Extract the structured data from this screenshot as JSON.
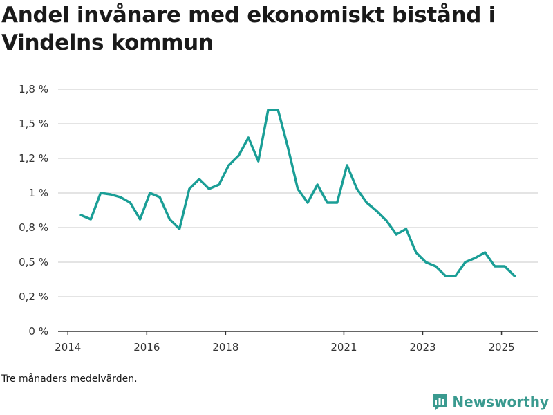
{
  "title": "Andel invånare med ekonomiskt bistånd i Vindelns kommun",
  "note": "Tre månaders medelvärden.",
  "brand": {
    "name": "Newsworthy",
    "color": "#3a9a8f"
  },
  "chart_data": {
    "type": "line",
    "color": "#1a9e96",
    "grid": true,
    "ylim": [
      0,
      1.75
    ],
    "yticks": [
      {
        "value": 0,
        "label": "0 %"
      },
      {
        "value": 0.25,
        "label": "0,2 %"
      },
      {
        "value": 0.5,
        "label": "0,5 %"
      },
      {
        "value": 0.75,
        "label": "0,8 %"
      },
      {
        "value": 1.0,
        "label": "1 %"
      },
      {
        "value": 1.25,
        "label": "1,2 %"
      },
      {
        "value": 1.5,
        "label": "1,5 %"
      },
      {
        "value": 1.75,
        "label": "1,8 %"
      }
    ],
    "xlim": [
      2013.75,
      2025.92
    ],
    "xticks": [
      {
        "value": 2014,
        "label": "2014"
      },
      {
        "value": 2016,
        "label": "2016"
      },
      {
        "value": 2018,
        "label": "2018"
      },
      {
        "value": 2021,
        "label": "2021"
      },
      {
        "value": 2023,
        "label": "2023"
      },
      {
        "value": 2025,
        "label": "2025"
      }
    ],
    "x": [
      2014.33,
      2014.58,
      2014.83,
      2015.08,
      2015.33,
      2015.58,
      2015.83,
      2016.08,
      2016.33,
      2016.58,
      2016.83,
      2017.08,
      2017.33,
      2017.58,
      2017.83,
      2018.08,
      2018.33,
      2018.58,
      2018.83,
      2019.08,
      2019.33,
      2019.58,
      2019.83,
      2020.08,
      2020.33,
      2020.58,
      2020.83,
      2021.08,
      2021.33,
      2021.58,
      2021.83,
      2022.08,
      2022.33,
      2022.58,
      2022.83,
      2023.08,
      2023.33,
      2023.58,
      2023.83,
      2024.08,
      2024.33,
      2024.58,
      2024.83,
      2025.08,
      2025.33
    ],
    "y": [
      0.84,
      0.81,
      1.0,
      0.99,
      0.97,
      0.93,
      0.81,
      1.0,
      0.97,
      0.81,
      0.74,
      1.03,
      1.1,
      1.03,
      1.06,
      1.2,
      1.27,
      1.4,
      1.23,
      1.6,
      1.6,
      1.33,
      1.03,
      0.93,
      1.06,
      0.93,
      0.93,
      1.2,
      1.03,
      0.93,
      0.87,
      0.8,
      0.7,
      0.74,
      0.57,
      0.5,
      0.47,
      0.4,
      0.4,
      0.5,
      0.53,
      0.57,
      0.47,
      0.47,
      0.4
    ]
  }
}
